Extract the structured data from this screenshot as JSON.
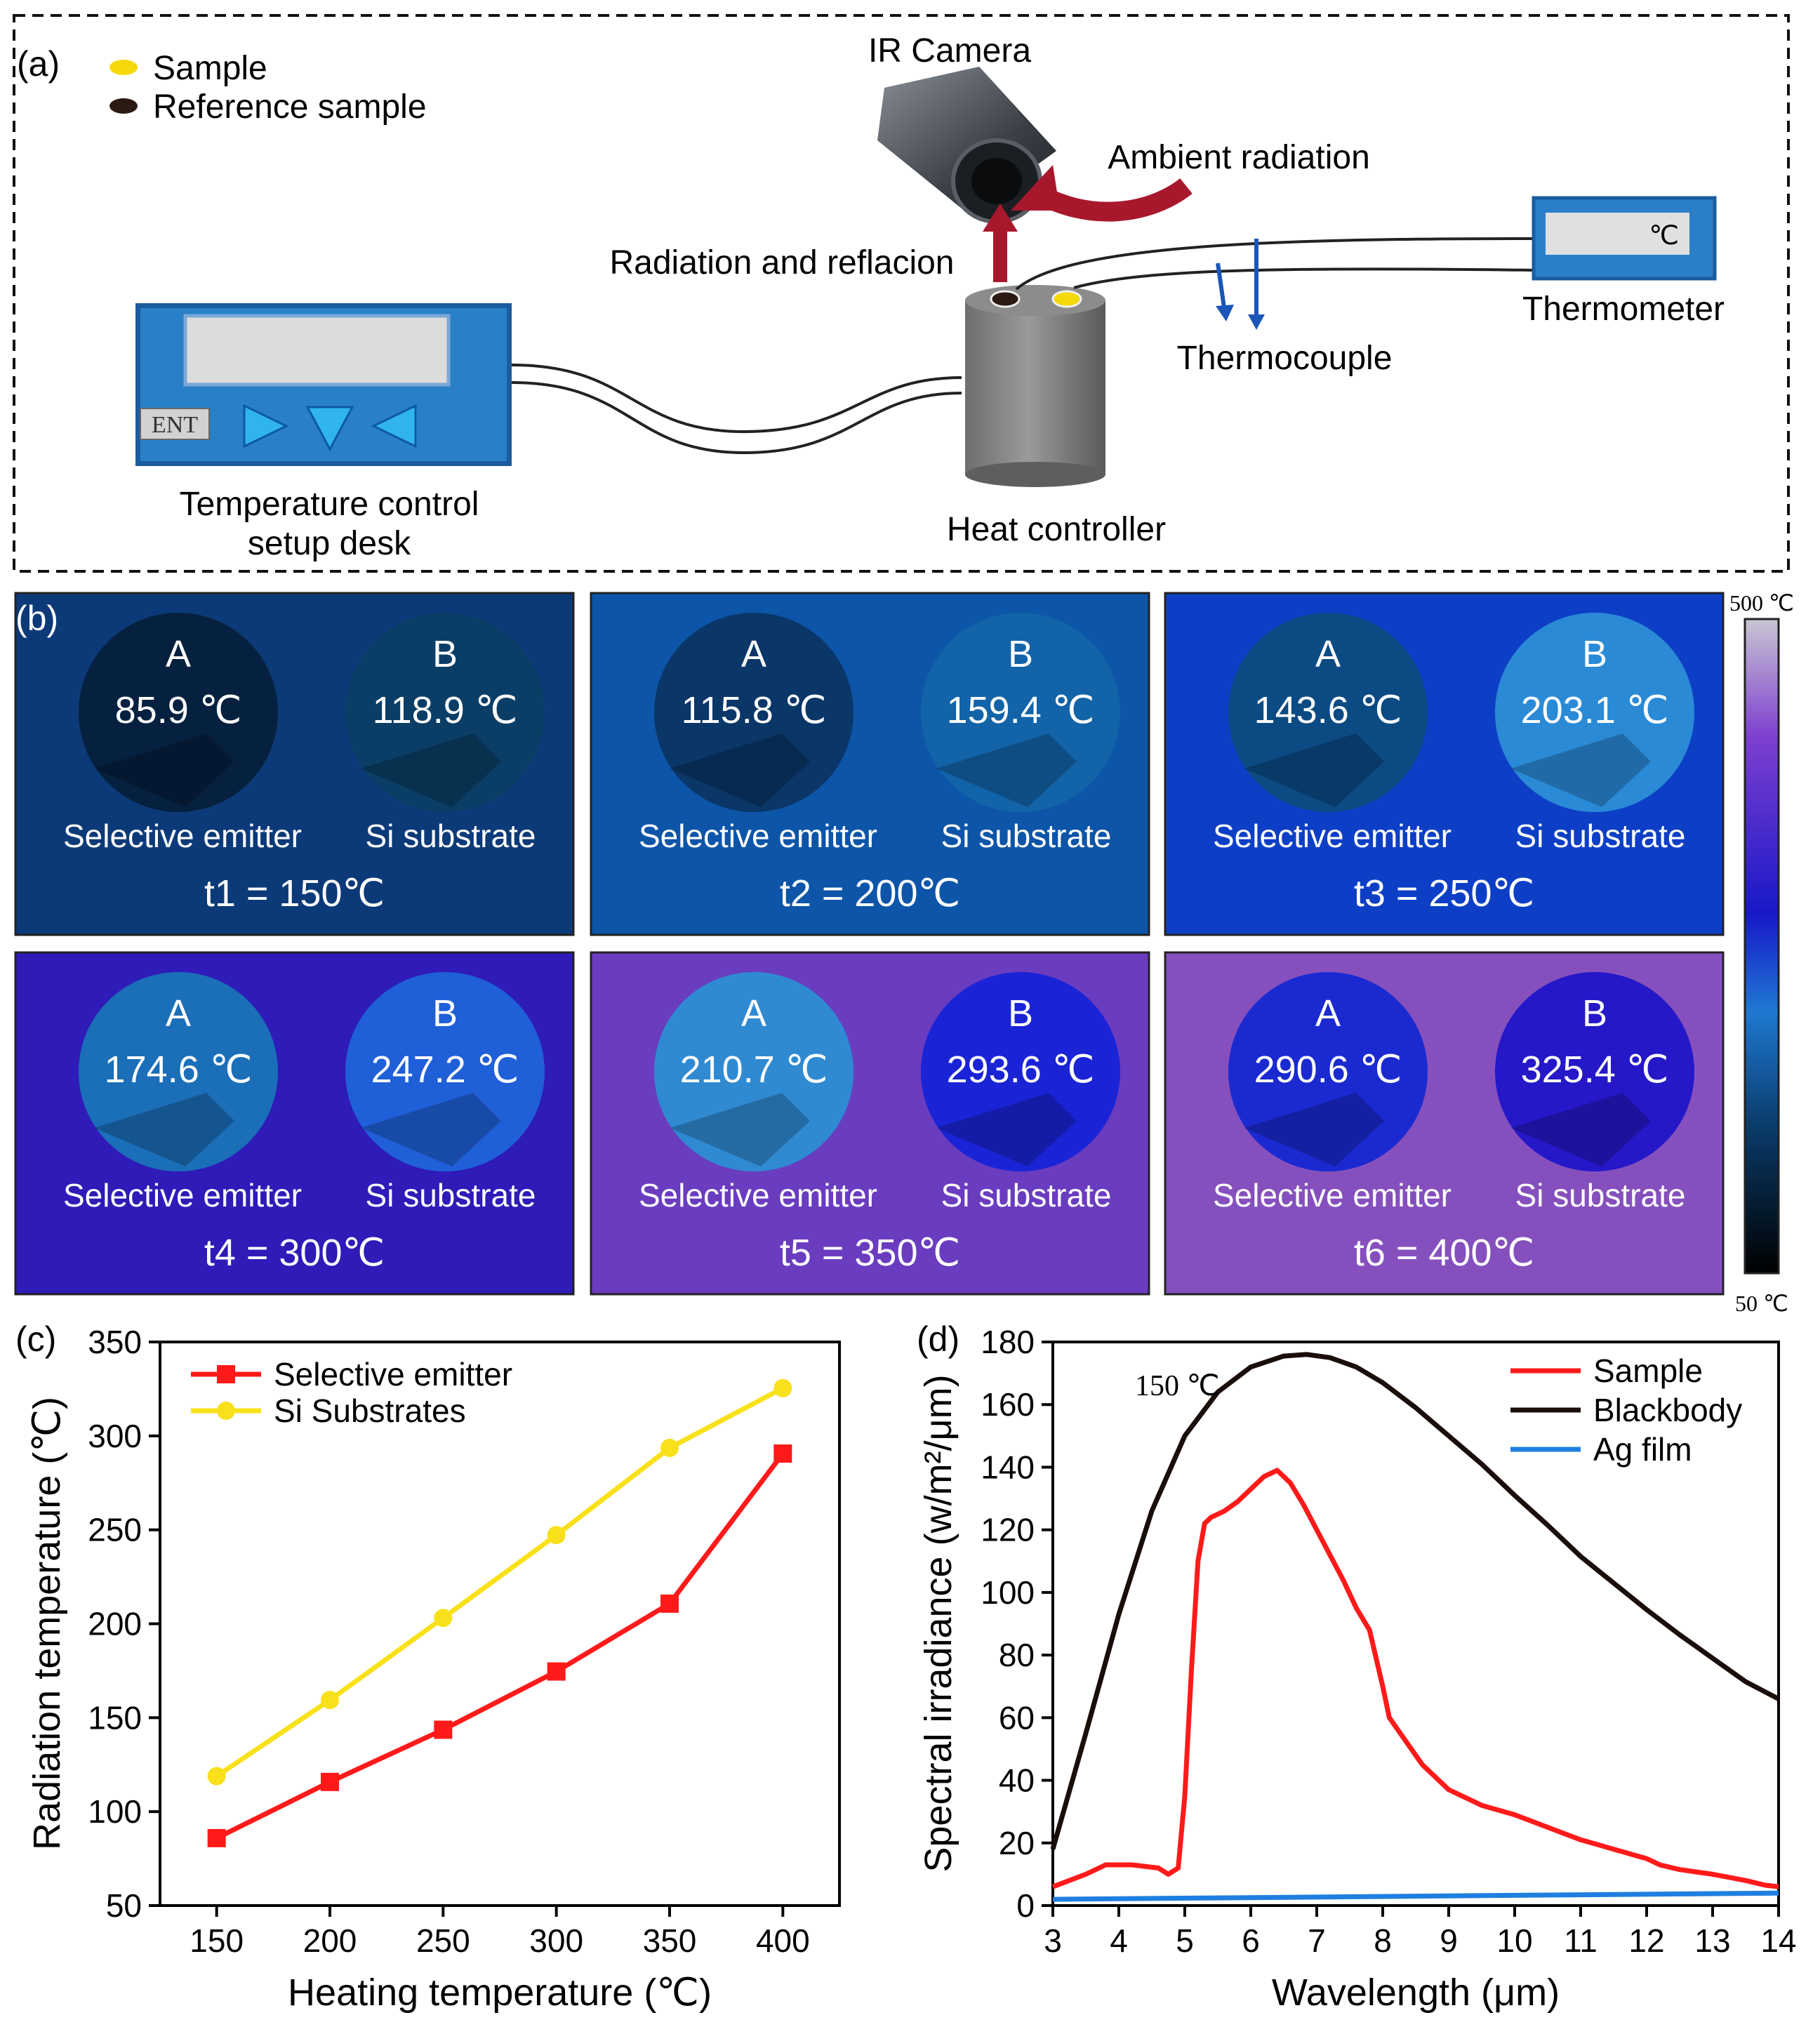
{
  "panel_a": {
    "label": "(a)",
    "legend": [
      {
        "text": "Sample",
        "color": "#f5d90a"
      },
      {
        "text": "Reference sample",
        "color": "#2a1a12"
      }
    ],
    "ir_camera": "IR Camera",
    "ambient_radiation": "Ambient radiation",
    "radiation_reflection": "Radiation and reflacion",
    "thermometer": "Thermometer",
    "thermometer_unit": "℃",
    "thermocouple": "Thermocouple",
    "desk_line1": "Temperature control",
    "desk_line2": "setup desk",
    "desk_button": "ENT",
    "heat_controller": "Heat controller"
  },
  "panel_b": {
    "label": "(b)",
    "colorbar_max": "500 ℃",
    "colorbar_min": "50 ℃",
    "tiles": [
      {
        "bg": "#0c3a78",
        "caption": "t1 = 150℃",
        "a_letter": "A",
        "a_temp": "85.9 ℃",
        "a_fill": "#06213f",
        "a_label": "Selective emitter",
        "b_letter": "B",
        "b_temp": "118.9 ℃",
        "b_fill": "#0b3e66",
        "b_label": "Si substrate"
      },
      {
        "bg": "#0c55a8",
        "caption": "t2 = 200℃",
        "a_letter": "A",
        "a_temp": "115.8 ℃",
        "a_fill": "#0a3668",
        "a_label": "Selective emitter",
        "b_letter": "B",
        "b_temp": "159.4 ℃",
        "b_fill": "#1263a8",
        "b_label": "Si substrate"
      },
      {
        "bg": "#0d3fc6",
        "caption": "t3 = 250℃",
        "a_letter": "A",
        "a_temp": "143.6 ℃",
        "a_fill": "#0c4a84",
        "a_label": "Selective emitter",
        "b_letter": "B",
        "b_temp": "203.1 ℃",
        "b_fill": "#2a8ad6",
        "b_label": "Si substrate"
      },
      {
        "bg": "#2e1bb8",
        "caption": "t4 = 300℃",
        "a_letter": "A",
        "a_temp": "174.6 ℃",
        "a_fill": "#1b6eb8",
        "a_label": "Selective emitter",
        "b_letter": "B",
        "b_temp": "247.2 ℃",
        "b_fill": "#1f5fd8",
        "b_label": "Si substrate"
      },
      {
        "bg": "#6a3cc0",
        "caption": "t5 = 350℃",
        "a_letter": "A",
        "a_temp": "210.7 ℃",
        "a_fill": "#2f8ad2",
        "a_label": "Selective emitter",
        "b_letter": "B",
        "b_temp": "293.6 ℃",
        "b_fill": "#1a24d6",
        "b_label": "Si substrate"
      },
      {
        "bg": "#8550bd",
        "caption": "t6 = 400℃",
        "a_letter": "A",
        "a_temp": "290.6 ℃",
        "a_fill": "#1a2ad0",
        "a_label": "Selective emitter",
        "b_letter": "B",
        "b_temp": "325.4 ℃",
        "b_fill": "#2418c8",
        "b_label": "Si substrate"
      }
    ]
  },
  "chart_data": [
    {
      "panel": "(c)",
      "type": "line",
      "title": "",
      "xlabel": "Heating temperature (℃)",
      "ylabel": "Radiation temperature (℃)",
      "xlim": [
        125,
        425
      ],
      "ylim": [
        50,
        350
      ],
      "xticks": [
        150,
        200,
        250,
        300,
        350,
        400
      ],
      "yticks": [
        50,
        100,
        150,
        200,
        250,
        300,
        350
      ],
      "legend_position": "top-left",
      "series": [
        {
          "name": "Selective emitter",
          "color": "#ff1a1a",
          "marker": "square",
          "x": [
            150,
            200,
            250,
            300,
            350,
            400
          ],
          "y": [
            85.9,
            115.8,
            143.6,
            174.6,
            210.7,
            290.6
          ]
        },
        {
          "name": "Si Substrates",
          "color": "#f8e11a",
          "marker": "circle",
          "x": [
            150,
            200,
            250,
            300,
            350,
            400
          ],
          "y": [
            118.9,
            159.4,
            203.1,
            247.2,
            293.6,
            325.4
          ]
        }
      ]
    },
    {
      "panel": "(d)",
      "type": "line",
      "annotation": "150 ℃",
      "xlabel": "Wavelength (μm)",
      "ylabel": "Spectral irradiance (w/m²/μm)",
      "xlim": [
        3,
        14
      ],
      "ylim": [
        0,
        180
      ],
      "xticks": [
        3,
        4,
        5,
        6,
        7,
        8,
        9,
        10,
        11,
        12,
        13,
        14
      ],
      "yticks": [
        0,
        20,
        40,
        60,
        80,
        100,
        120,
        140,
        160,
        180
      ],
      "legend_position": "top-right",
      "series": [
        {
          "name": "Sample",
          "color": "#ff1a1a",
          "x": [
            3,
            3.5,
            3.8,
            4.2,
            4.6,
            4.75,
            4.9,
            5.0,
            5.1,
            5.2,
            5.3,
            5.4,
            5.6,
            5.8,
            6.0,
            6.2,
            6.4,
            6.6,
            6.8,
            7.0,
            7.2,
            7.4,
            7.6,
            7.8,
            8.0,
            8.1,
            8.3,
            8.6,
            9.0,
            9.5,
            10.0,
            10.5,
            11.0,
            11.5,
            12.0,
            12.2,
            12.5,
            13.0,
            13.5,
            13.8,
            14.0
          ],
          "y": [
            6,
            10,
            13,
            13,
            12,
            10,
            12,
            35,
            75,
            110,
            122,
            124,
            126,
            129,
            133,
            137,
            139,
            135,
            128,
            120,
            112,
            104,
            95,
            88,
            70,
            60,
            54,
            45,
            37,
            32,
            29,
            25,
            21,
            18,
            15,
            13,
            11.5,
            10,
            8,
            6.5,
            6
          ]
        },
        {
          "name": "Blackbody",
          "color": "#1a0e0a",
          "x": [
            3,
            3.5,
            4,
            4.5,
            5,
            5.5,
            6,
            6.5,
            6.85,
            7.2,
            7.6,
            8,
            8.5,
            9,
            9.5,
            10,
            10.5,
            11,
            11.5,
            12,
            12.5,
            13,
            13.5,
            14
          ],
          "y": [
            18,
            55,
            93,
            126,
            150,
            164,
            172,
            175.5,
            176,
            175,
            172,
            167,
            159,
            150,
            141,
            131,
            121.5,
            111.5,
            103,
            94.5,
            86.5,
            79,
            71.5,
            66
          ]
        },
        {
          "name": "Ag film",
          "color": "#1f7fe0",
          "x": [
            3,
            14
          ],
          "y": [
            2,
            4
          ]
        }
      ]
    }
  ]
}
